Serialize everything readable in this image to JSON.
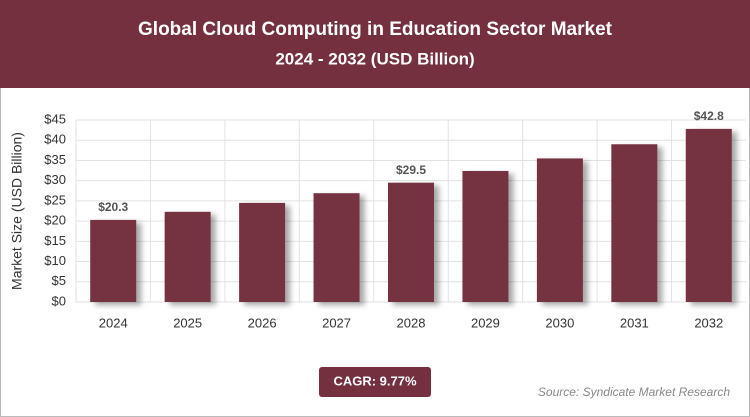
{
  "chart_data": {
    "type": "bar",
    "title": "Global Cloud Computing in Education Sector Market",
    "subtitle": "2024 - 2032 (USD Billion)",
    "y_axis_label": "Market Size (USD Billion)",
    "categories": [
      "2024",
      "2025",
      "2026",
      "2027",
      "2028",
      "2029",
      "2030",
      "2031",
      "2032"
    ],
    "values": [
      20.3,
      22.3,
      24.5,
      26.9,
      29.5,
      32.4,
      35.5,
      39.0,
      42.8
    ],
    "value_labels": [
      "$20.3",
      null,
      null,
      null,
      "$29.5",
      null,
      null,
      null,
      "$42.8"
    ],
    "color": "#74303f",
    "ylim": [
      0,
      45
    ],
    "yticks": [
      {
        "value": 0,
        "label": "$0"
      },
      {
        "value": 5,
        "label": "$5"
      },
      {
        "value": 10,
        "label": "$10"
      },
      {
        "value": 15,
        "label": "$15"
      },
      {
        "value": 20,
        "label": "$20"
      },
      {
        "value": 25,
        "label": "$25"
      },
      {
        "value": 30,
        "label": "$30"
      },
      {
        "value": 35,
        "label": "$35"
      },
      {
        "value": 40,
        "label": "$40"
      },
      {
        "value": 45,
        "label": "$45"
      }
    ],
    "grid": true,
    "cagr": "CAGR: 9.77%",
    "source": "Source: Syndicate Market Research"
  }
}
